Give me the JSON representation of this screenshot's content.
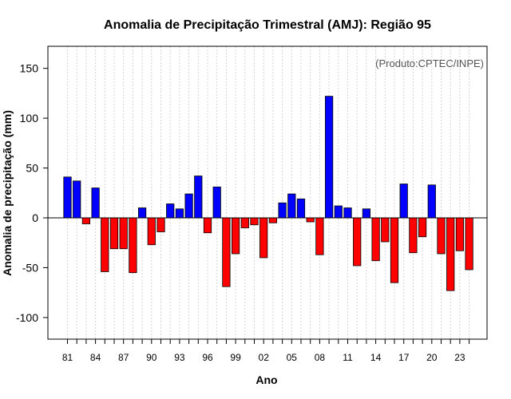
{
  "chart_data": {
    "type": "bar",
    "title": "Anomalia de Precipitação Trimestral (AMJ): Região 95",
    "xlabel": "Ano",
    "ylabel": "Anomalia de precipitação (mm)",
    "annotation": "(Produto:CPTEC/INPE)",
    "ylim": [
      -122,
      172
    ],
    "yticks": [
      -100,
      -50,
      0,
      50,
      100,
      150
    ],
    "categories": [
      "1981",
      "1982",
      "1983",
      "1984",
      "1985",
      "1986",
      "1987",
      "1988",
      "1989",
      "1990",
      "1991",
      "1992",
      "1993",
      "1994",
      "1995",
      "1996",
      "1997",
      "1998",
      "1999",
      "2000",
      "2001",
      "2002",
      "2003",
      "2004",
      "2005",
      "2006",
      "2007",
      "2008",
      "2009",
      "2010",
      "2011",
      "2012",
      "2013",
      "2014",
      "2015",
      "2016",
      "2017",
      "2018",
      "2019",
      "2020",
      "2021",
      "2022",
      "2023",
      "2024"
    ],
    "xtick_labels": [
      "81",
      "84",
      "87",
      "90",
      "93",
      "96",
      "99",
      "02",
      "05",
      "08",
      "11",
      "14",
      "17",
      "20",
      "23"
    ],
    "values": [
      41,
      37,
      -6,
      30,
      -54,
      -31,
      -31,
      -55,
      10,
      -27,
      -14,
      14,
      9,
      24,
      42,
      -15,
      31,
      -69,
      -36,
      -10,
      -7,
      -40,
      -5,
      15,
      24,
      19,
      -4,
      -37,
      122,
      12,
      10,
      -48,
      9,
      -43,
      -24,
      -65,
      34,
      -35,
      -19,
      33,
      -36,
      -73,
      -33,
      -52
    ],
    "colors": {
      "positive": "#0000ff",
      "negative": "#ff0000",
      "grid": "#d3d3d3",
      "axis": "#000000"
    },
    "grid": true
  }
}
